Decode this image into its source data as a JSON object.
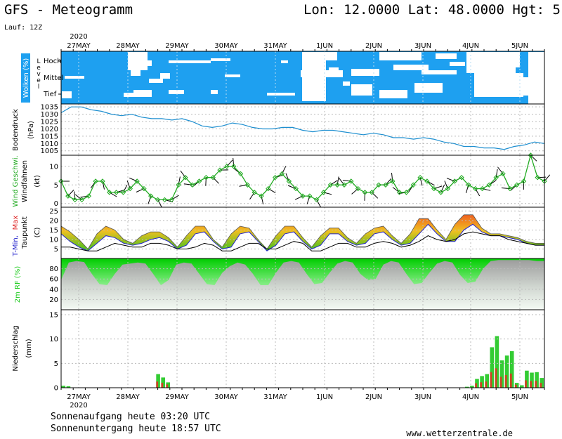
{
  "header": {
    "title": "GFS - Meteogramm",
    "coords": "Lon: 12.0000  Lat: 48.0000  Hgt: 5",
    "run": "Lauf: 12Z"
  },
  "footer": {
    "sunrise": "Sonnenaufgang heute 03:20 UTC",
    "sunset": "Sonnenuntergang heute 18:57 UTC",
    "credit": "www.wetterzentrale.de"
  },
  "colors": {
    "cloud": "#1ea0f0",
    "pressure": "#1e8fd0",
    "wind": "#22aa22",
    "rh": "#22cc22",
    "precip_green": "#33cc33",
    "precip_red": "#cc4422",
    "tmin": "#2222cc",
    "tmax": "#dd2222"
  },
  "chart_data": {
    "type": "meteogram",
    "year": "2020",
    "days": [
      "27MAY",
      "28MAY",
      "29MAY",
      "30MAY",
      "31MAY",
      "1JUN",
      "2JUN",
      "3JUN",
      "4JUN",
      "5JUN"
    ],
    "panels": [
      {
        "id": "clouds",
        "label": "Wolken (%)",
        "sublabel": "Level",
        "levels": [
          "Hoch",
          "Mittel",
          "Tief"
        ]
      },
      {
        "id": "pressure",
        "label": "Bodendruck",
        "unit": "(hPa)",
        "ticks": [
          1035,
          1030,
          1025,
          1020,
          1015,
          1010,
          1005
        ],
        "ylim": [
          1002,
          1037
        ],
        "values": [
          1031,
          1035,
          1035,
          1033,
          1032,
          1030,
          1029,
          1030,
          1028,
          1027,
          1027,
          1026,
          1027,
          1025,
          1022,
          1021,
          1022,
          1024,
          1023,
          1021,
          1020,
          1020,
          1021,
          1021,
          1019,
          1018,
          1019,
          1019,
          1018,
          1017,
          1016,
          1017,
          1016,
          1014,
          1014,
          1013,
          1014,
          1013,
          1011,
          1010,
          1008,
          1008,
          1007,
          1007,
          1006,
          1008,
          1009,
          1011,
          1010
        ]
      },
      {
        "id": "wind",
        "label": "Wind Geschwi.",
        "sublabel": "Windfahnen",
        "unit": "(kt)",
        "ticks": [
          10,
          5,
          0
        ],
        "ylim": [
          -1,
          13
        ],
        "values": [
          6,
          2,
          1,
          1,
          2,
          6,
          6,
          3,
          3,
          3,
          4,
          6,
          4,
          2,
          1,
          1,
          1,
          5,
          7,
          5,
          6,
          7,
          7,
          9,
          10,
          10,
          8,
          5,
          3,
          2,
          4,
          7,
          8,
          6,
          4,
          2,
          2,
          1,
          3,
          5,
          5,
          5,
          6,
          4,
          3,
          3,
          5,
          5,
          6,
          3,
          3,
          5,
          7,
          6,
          4,
          3,
          4,
          6,
          7,
          5,
          4,
          4,
          5,
          7,
          8,
          4,
          5,
          6,
          13,
          7,
          6
        ]
      },
      {
        "id": "temperature",
        "label": "T-Min, Max",
        "sublabel": "Taupunkt",
        "unit": "(C)",
        "ticks": [
          25,
          20,
          15,
          10,
          5
        ],
        "ylim": [
          0,
          27
        ],
        "tmax": [
          17,
          14,
          10,
          5,
          13,
          17,
          15,
          10,
          8,
          12,
          14,
          14,
          11,
          6,
          12,
          17,
          17,
          10,
          6,
          13,
          17,
          16,
          10,
          5,
          12,
          17,
          17,
          11,
          6,
          12,
          16,
          16,
          11,
          8,
          13,
          16,
          17,
          12,
          8,
          13,
          21,
          21,
          15,
          10,
          18,
          23,
          23,
          16,
          13,
          13,
          12,
          11,
          9,
          8,
          8
        ],
        "tmin": [
          13,
          9,
          6,
          4,
          8,
          12,
          11,
          8,
          7,
          8,
          10,
          11,
          9,
          5,
          7,
          13,
          14,
          9,
          5,
          6,
          13,
          14,
          9,
          4,
          7,
          13,
          14,
          9,
          5,
          7,
          13,
          13,
          9,
          7,
          8,
          13,
          14,
          10,
          7,
          8,
          13,
          18,
          13,
          9,
          9,
          15,
          18,
          14,
          12,
          12,
          11,
          10,
          8,
          7,
          7
        ],
        "dew": [
          6,
          6,
          5,
          4,
          4,
          6,
          8,
          7,
          6,
          6,
          8,
          8,
          7,
          5,
          5,
          6,
          8,
          7,
          4,
          4,
          6,
          8,
          8,
          5,
          5,
          7,
          9,
          8,
          4,
          4,
          6,
          8,
          8,
          6,
          6,
          8,
          9,
          8,
          6,
          7,
          9,
          12,
          10,
          9,
          10,
          13,
          14,
          13,
          12,
          12,
          10,
          9,
          8,
          7,
          7
        ]
      },
      {
        "id": "humidity",
        "label": "2m RF (%)",
        "ticks": [
          80,
          60,
          40,
          20
        ],
        "ylim": [
          0,
          100
        ],
        "values": [
          58,
          92,
          95,
          93,
          70,
          50,
          48,
          70,
          88,
          90,
          92,
          90,
          70,
          48,
          58,
          88,
          92,
          90,
          70,
          50,
          48,
          72,
          85,
          92,
          88,
          70,
          48,
          48,
          72,
          92,
          95,
          92,
          70,
          50,
          52,
          72,
          90,
          95,
          92,
          70,
          58,
          60,
          88,
          95,
          92,
          70,
          50,
          52,
          72,
          90,
          95,
          92,
          68,
          52,
          55,
          80,
          95,
          97,
          97,
          97,
          97,
          97,
          95,
          95
        ]
      },
      {
        "id": "precip",
        "label": "Niederschlag",
        "unit": "(mm)",
        "ticks": [
          15,
          10,
          5,
          0
        ],
        "ylim": [
          0,
          16
        ],
        "values": [
          0.4,
          0.3,
          0,
          0,
          0,
          0,
          0,
          0,
          0,
          0,
          0,
          0,
          0,
          0,
          0,
          0,
          0,
          0,
          0,
          2.8,
          2.1,
          1.1,
          0,
          0,
          0,
          0,
          0,
          0,
          0,
          0,
          0,
          0,
          0,
          0,
          0,
          0,
          0,
          0,
          0,
          0,
          0,
          0,
          0,
          0,
          0,
          0,
          0,
          0,
          0,
          0,
          0,
          0,
          0,
          0,
          0,
          0,
          0,
          0,
          0,
          0,
          0,
          0,
          0,
          0,
          0,
          0,
          0,
          0,
          0,
          0,
          0,
          0,
          0,
          0,
          0,
          0,
          0,
          0,
          0,
          0,
          0,
          0.2,
          0.4,
          1.8,
          2.4,
          2.8,
          8.3,
          10.6,
          5.6,
          6.6,
          7.5,
          1.0,
          0.5,
          3.5,
          3.1,
          3.2,
          2.0
        ]
      }
    ]
  }
}
